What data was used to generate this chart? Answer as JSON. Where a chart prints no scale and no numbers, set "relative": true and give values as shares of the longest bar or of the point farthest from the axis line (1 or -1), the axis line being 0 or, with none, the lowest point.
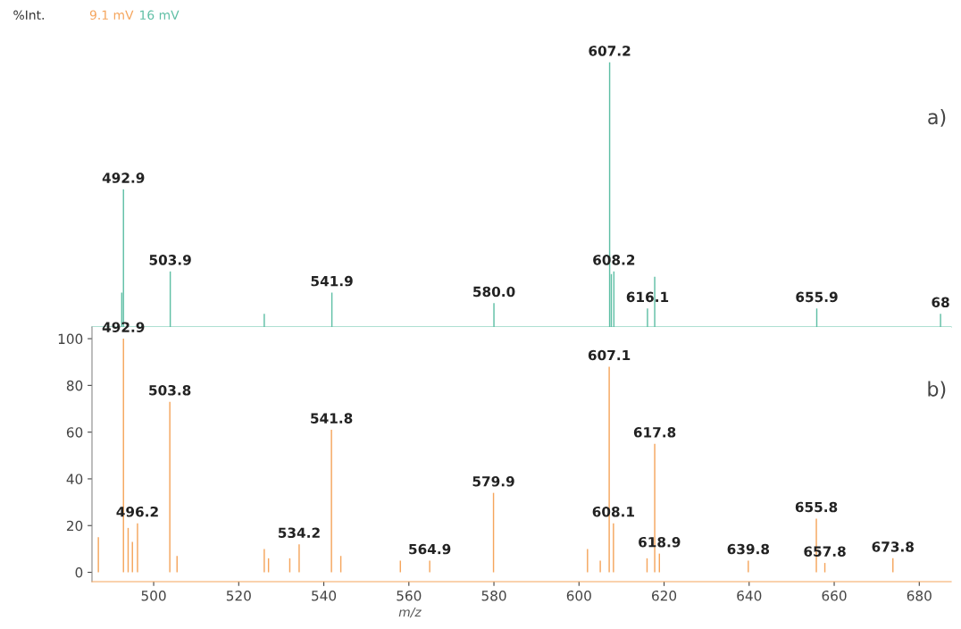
{
  "chart_data": [
    {
      "type": "bar",
      "relative": true,
      "xlim": [
        485.5,
        687.5
      ],
      "legend": "top left",
      "ylabel": "%Int.",
      "annotations": [
        "a)",
        {
          "text": "492.9",
          "x": 492.9,
          "y": 0.52
        },
        {
          "text": "503.9",
          "x": 503.9,
          "y": 0.21
        },
        {
          "text": "541.9",
          "x": 541.9,
          "y": 0.13
        },
        {
          "text": "580.0",
          "x": 580.0,
          "y": 0.09
        },
        {
          "text": "607.2",
          "x": 607.2,
          "y": 1
        },
        {
          "text": "608.2",
          "x": 608.2,
          "y": 0.21
        },
        {
          "text": "616.1",
          "x": 616.1,
          "y": 0.07
        },
        {
          "text": "655.9",
          "x": 655.9,
          "y": 0.07
        },
        {
          "text": "68",
          "x": 685.0,
          "y": 0.05
        }
      ],
      "series": [
        {
          "name": "16 mV",
          "color": "#5fbfa5",
          "x": [
            492.5,
            492.9,
            503.9,
            526.0,
            541.9,
            580.0,
            607.2,
            607.6,
            608.2,
            616.1,
            617.8,
            655.9,
            685.0
          ],
          "values": [
            0.13,
            0.52,
            0.21,
            0.05,
            0.13,
            0.09,
            1,
            0.2,
            0.21,
            0.07,
            0.19,
            0.07,
            0.05
          ]
        }
      ]
    },
    {
      "type": "bar",
      "xlim": [
        485.5,
        687.5
      ],
      "xticks": [
        500,
        520,
        540,
        560,
        580,
        600,
        620,
        640,
        660,
        680
      ],
      "ylim": [
        -4,
        105
      ],
      "yticks": [
        0,
        20,
        40,
        60,
        80,
        100
      ],
      "xlabel": "m/z",
      "legend": "top left",
      "annotations": [
        "b)",
        {
          "text": "492.9",
          "x": 492.9,
          "y": 100
        },
        {
          "text": "496.2",
          "x": 496.2,
          "y": 21
        },
        {
          "text": "503.8",
          "x": 503.8,
          "y": 73
        },
        {
          "text": "534.2",
          "x": 534.2,
          "y": 12
        },
        {
          "text": "541.8",
          "x": 541.8,
          "y": 61
        },
        {
          "text": "564.9",
          "x": 564.9,
          "y": 5
        },
        {
          "text": "579.9",
          "x": 579.9,
          "y": 34
        },
        {
          "text": "607.1",
          "x": 607.1,
          "y": 88
        },
        {
          "text": "608.1",
          "x": 608.1,
          "y": 21
        },
        {
          "text": "617.8",
          "x": 617.8,
          "y": 55
        },
        {
          "text": "618.9",
          "x": 618.9,
          "y": 8
        },
        {
          "text": "639.8",
          "x": 639.8,
          "y": 5
        },
        {
          "text": "655.8",
          "x": 655.8,
          "y": 23
        },
        {
          "text": "657.8",
          "x": 657.8,
          "y": 4
        },
        {
          "text": "673.8",
          "x": 673.8,
          "y": 6
        }
      ],
      "series": [
        {
          "name": "9.1 mV",
          "color": "#f5a55c",
          "x": [
            487.0,
            492.9,
            494.0,
            495.0,
            496.2,
            503.8,
            505.5,
            526.0,
            527.0,
            532.0,
            534.2,
            541.8,
            544.0,
            558.0,
            564.9,
            579.9,
            602.0,
            605.0,
            607.1,
            608.1,
            616.0,
            617.8,
            618.9,
            639.8,
            655.8,
            657.8,
            673.8
          ],
          "values": [
            15,
            100,
            19,
            13,
            21,
            73,
            7,
            10,
            6,
            6,
            12,
            61,
            7,
            5,
            5,
            34,
            10,
            5,
            88,
            21,
            6,
            55,
            8,
            5,
            23,
            4,
            6
          ]
        }
      ]
    }
  ]
}
